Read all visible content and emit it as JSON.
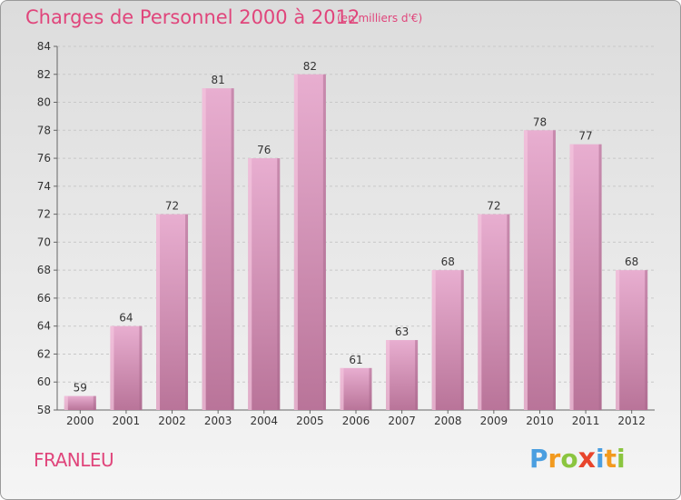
{
  "chart_data": {
    "type": "bar",
    "title": "Charges de Personnel 2000 à 2012",
    "subtitle": "(en milliers d'€)",
    "categories": [
      "2000",
      "2001",
      "2002",
      "2003",
      "2004",
      "2005",
      "2006",
      "2007",
      "2008",
      "2009",
      "2010",
      "2011",
      "2012"
    ],
    "values": [
      59,
      64,
      72,
      81,
      76,
      82,
      61,
      63,
      68,
      72,
      78,
      77,
      68
    ],
    "ylim": [
      58,
      84
    ],
    "yticks": [
      58,
      60,
      62,
      64,
      66,
      68,
      70,
      72,
      74,
      76,
      78,
      80,
      82,
      84
    ],
    "grid": true,
    "colors": {
      "bar": "#d88fb8",
      "bar_light": "#e6a8cb",
      "bar_dark": "#b87aa0",
      "text_accent": "#e0457b"
    }
  },
  "footer": {
    "place": "FRANLEU",
    "logo": [
      "P",
      "r",
      "o",
      "x",
      "i",
      "t",
      "i"
    ],
    "logo_colors": [
      "#4a9ee0",
      "#f29a1f",
      "#8bc53f",
      "#e8452c",
      "#4a9ee0",
      "#f29a1f",
      "#8bc53f"
    ]
  }
}
